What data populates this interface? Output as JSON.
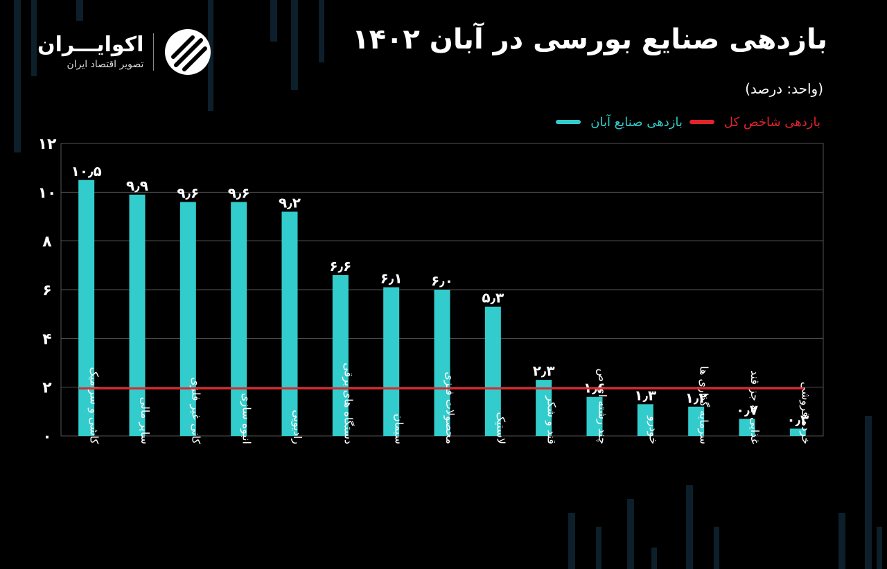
{
  "header": {
    "title": "بازدهی صنایع بورسی در آبان ۱۴۰۲",
    "unit": "(واحد: درصد)"
  },
  "brand": {
    "name": "اکوایـــران",
    "subtitle": "تصویر اقتصاد ایران"
  },
  "colors": {
    "bar": "#33cccc",
    "index_line": "#e0242b",
    "grid": "#555555",
    "background": "#000000"
  },
  "chart_data": {
    "type": "bar",
    "title": "بازدهی صنایع بورسی در آبان ۱۴۰۲",
    "ylabel": "(واحد: درصد)",
    "ylim": [
      0,
      12
    ],
    "yticks": [
      {
        "value": 0,
        "label": "۰"
      },
      {
        "value": 2,
        "label": "۲"
      },
      {
        "value": 4,
        "label": "۴"
      },
      {
        "value": 6,
        "label": "۶"
      },
      {
        "value": 8,
        "label": "۸"
      },
      {
        "value": 10,
        "label": "۱۰"
      },
      {
        "value": 12,
        "label": "۱۲"
      }
    ],
    "grid": true,
    "legend_position": "top-right",
    "categories": [
      "کاشی و سرامیک",
      "سایر مالی",
      "کانی غیر فلزی",
      "انبوه سازی",
      "رادیویی",
      "دستگاه های برقی",
      "سیمان",
      "محصولات فلزی",
      "لاستیک",
      "قند و شکر",
      "چند رشته ای ص",
      "خودرو",
      "سرمایه گذاری ها",
      "غذایی به جز قند",
      "خرده فروشی"
    ],
    "series": [
      {
        "name": "بازدهی صنایع آبان",
        "values": [
          10.5,
          9.9,
          9.6,
          9.6,
          9.2,
          6.6,
          6.1,
          6.0,
          5.3,
          2.3,
          1.6,
          1.3,
          1.2,
          0.7,
          0.3
        ],
        "labels": [
          "۱۰٫۵",
          "۹٫۹",
          "۹٫۶",
          "۹٫۶",
          "۹٫۲",
          "۶٫۶",
          "۶٫۱",
          "۶٫۰",
          "۵٫۳",
          "۲٫۳",
          "۱٫۶",
          "۱٫۳",
          "۱٫۲",
          "۰٫۷",
          "۰٫۳"
        ]
      }
    ],
    "reference_line": {
      "name": "بازدهی شاخص کل",
      "value": 1.95
    }
  }
}
